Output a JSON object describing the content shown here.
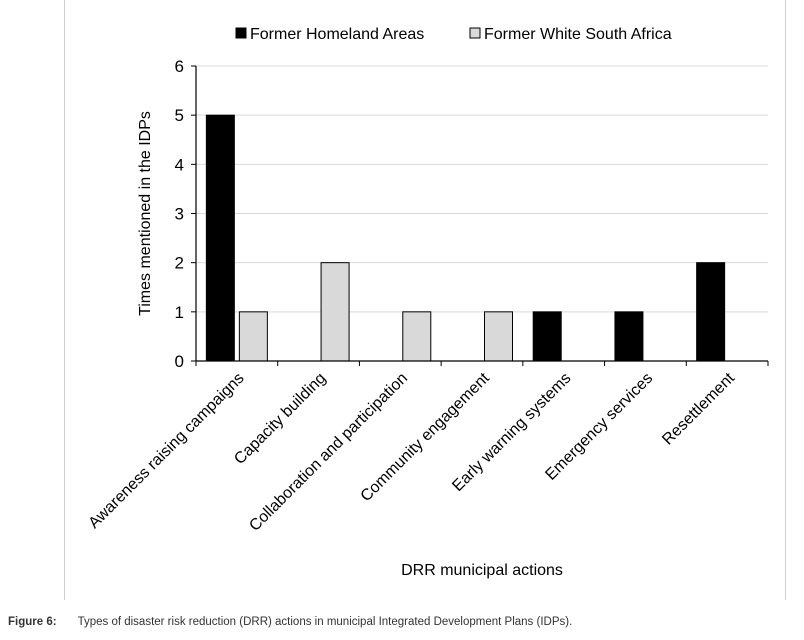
{
  "chart_data": {
    "type": "bar",
    "title": "",
    "xlabel": "DRR municipal actions",
    "ylabel": "Times mentioned in the IDPs",
    "ylim": [
      0,
      6
    ],
    "yticks": [
      0,
      1,
      2,
      3,
      4,
      5,
      6
    ],
    "grid": true,
    "legend_position": "top",
    "categories": [
      "Awareness raising campaigns",
      "Capacity building",
      "Collaboration and participation",
      "Community engagement",
      "Early warning systems",
      "Emergency services",
      "Resettlement"
    ],
    "series": [
      {
        "name": "Former Homeland Areas",
        "color": "#000000",
        "values": [
          5,
          0,
          0,
          0,
          1,
          1,
          2
        ]
      },
      {
        "name": "Former White South Africa",
        "color": "#d9d9d9",
        "values": [
          1,
          2,
          1,
          1,
          0,
          0,
          0
        ]
      }
    ]
  },
  "caption": {
    "label": "Figure 6:",
    "text": "Types of disaster risk reduction (DRR) actions in municipal Integrated Development Plans (IDPs)."
  }
}
